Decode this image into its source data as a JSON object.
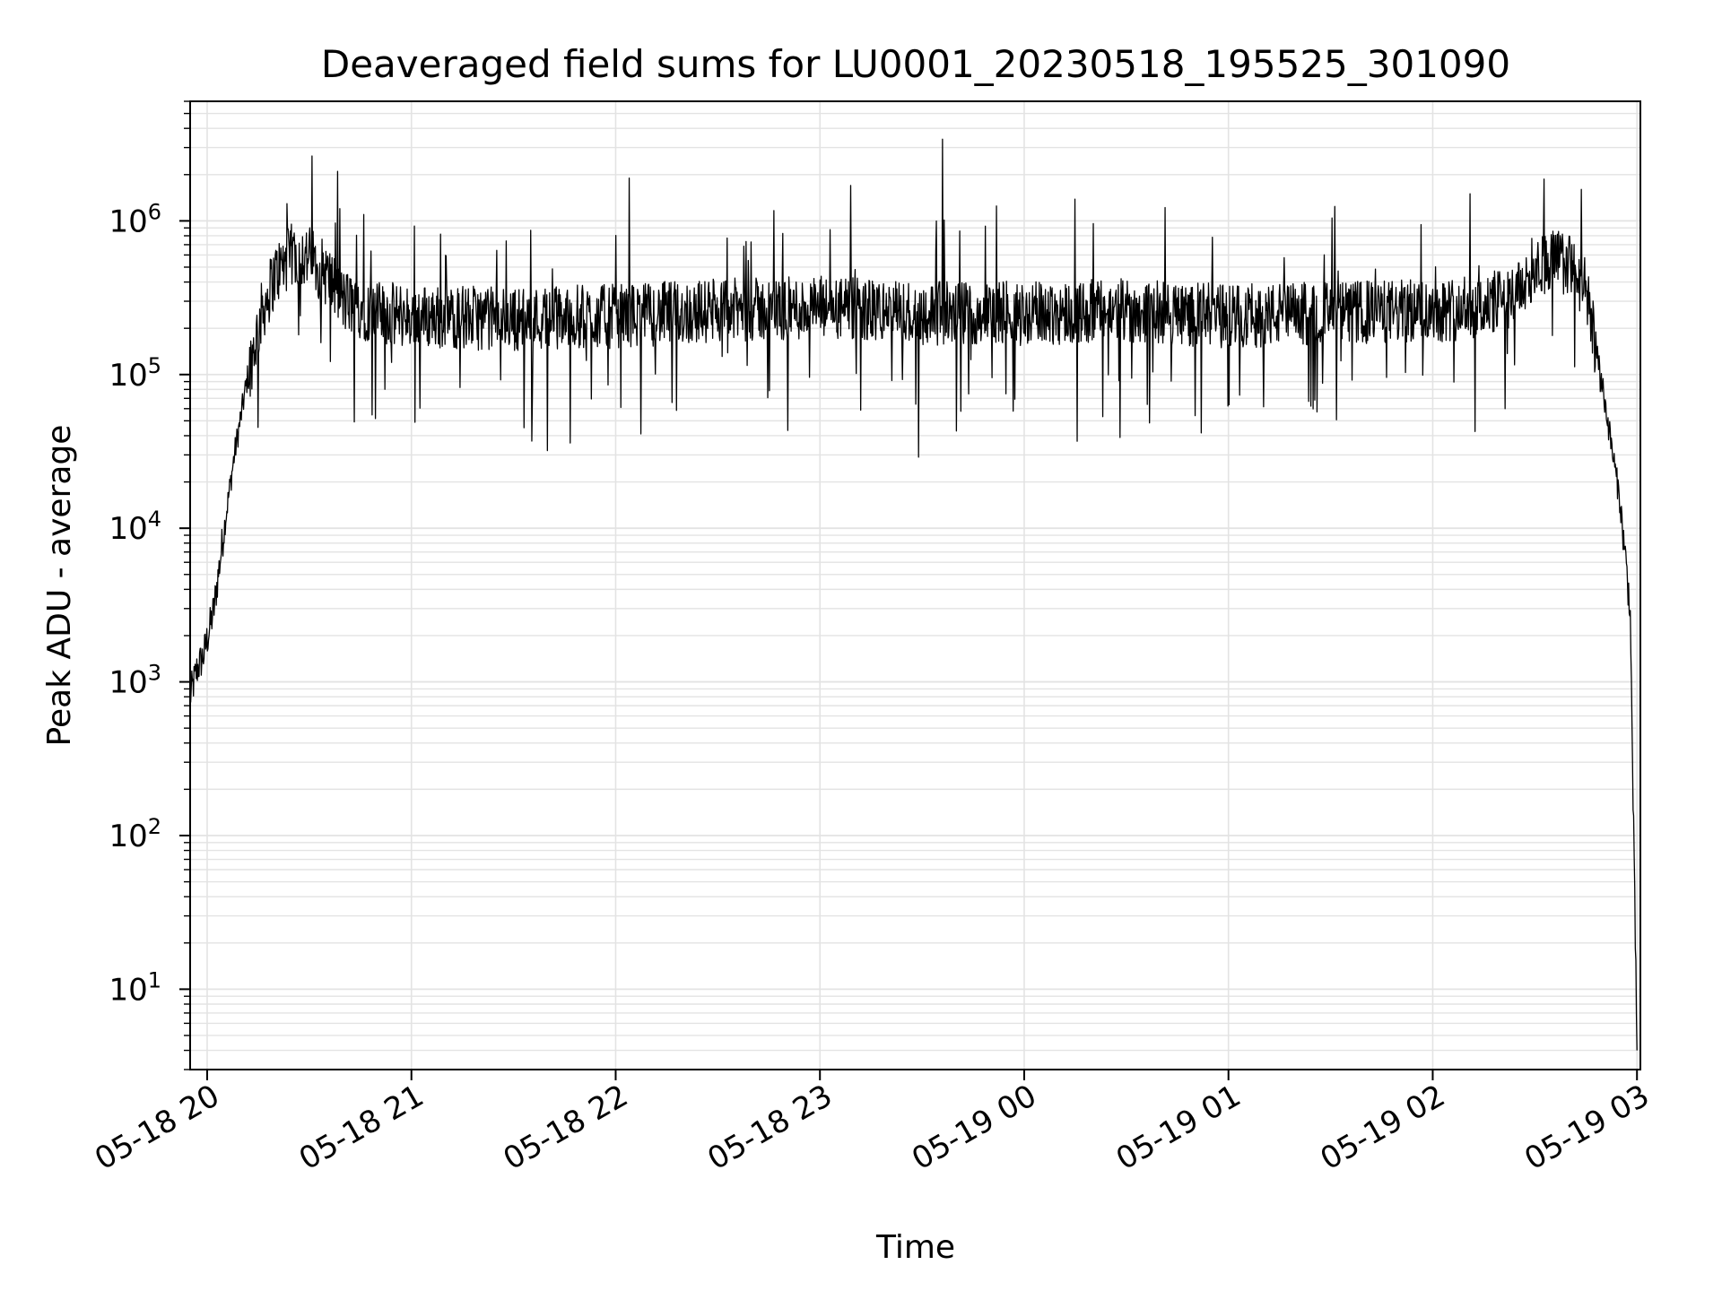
{
  "chart_data": {
    "type": "line",
    "title": "Deaveraged field sums for LU0001_20230518_195525_301090",
    "xlabel": "Time",
    "ylabel": "Peak ADU - average",
    "x_axis": {
      "kind": "time",
      "range": [
        "05-18 19:55",
        "05-19 03:01"
      ],
      "tick_labels": [
        "05-18 20",
        "05-18 21",
        "05-18 22",
        "05-18 23",
        "05-19 00",
        "05-19 01",
        "05-19 02",
        "05-19 03"
      ],
      "tick_times": [
        "05-18 20:00",
        "05-18 21:00",
        "05-18 22:00",
        "05-18 23:00",
        "05-19 00:00",
        "05-19 01:00",
        "05-19 02:00",
        "05-19 03:00"
      ]
    },
    "y_axis": {
      "scale": "log",
      "range": [
        3,
        6000000
      ],
      "tick_values": [
        10,
        100,
        1000,
        10000,
        100000,
        1000000
      ],
      "tick_bases": [
        "10",
        "10",
        "10",
        "10",
        "10",
        "10"
      ],
      "tick_exponents": [
        "1",
        "2",
        "3",
        "4",
        "5",
        "6"
      ]
    },
    "grid": true,
    "legend": "none",
    "series": [
      {
        "color": "#000000",
        "x": [
          "05-18 19:55",
          "05-18 19:57",
          "05-18 19:59",
          "05-18 20:02",
          "05-18 20:05",
          "05-18 20:08",
          "05-18 20:12",
          "05-18 20:16",
          "05-18 20:20",
          "05-18 20:25",
          "05-18 20:30",
          "05-18 20:35",
          "05-18 20:40",
          "05-18 20:50",
          "05-18 21:00",
          "05-18 21:30",
          "05-18 22:00",
          "05-18 22:30",
          "05-18 23:00",
          "05-18 23:30",
          "05-19 00:00",
          "05-19 00:30",
          "05-19 01:00",
          "05-19 01:30",
          "05-19 02:00",
          "05-19 02:15",
          "05-19 02:25",
          "05-19 02:30",
          "05-19 02:35",
          "05-19 02:40",
          "05-19 02:45",
          "05-19 02:50",
          "05-19 02:55",
          "05-19 02:58",
          "05-19 03:00"
        ],
        "y": [
          800,
          1200,
          1500,
          3000,
          10000,
          30000,
          100000,
          250000,
          450000,
          600000,
          580000,
          450000,
          300000,
          250000,
          240000,
          230000,
          240000,
          260000,
          270000,
          250000,
          250000,
          260000,
          240000,
          250000,
          260000,
          280000,
          330000,
          520000,
          560000,
          520000,
          350000,
          80000,
          15000,
          3000,
          4
        ],
        "spikes": [
          {
            "x": "05-18 22:04",
            "y": 1900000
          },
          {
            "x": "05-18 23:36",
            "y": 3400000
          },
          {
            "x": "05-18 23:09",
            "y": 1700000
          },
          {
            "x": "05-19 02:11",
            "y": 1500000
          },
          {
            "x": "05-18 20:39",
            "y": 1200000
          },
          {
            "x": "05-18 20:46",
            "y": 1100000
          },
          {
            "x": "05-18 23:29",
            "y": 29000
          },
          {
            "x": "05-18 21:40",
            "y": 32000
          }
        ]
      }
    ]
  }
}
